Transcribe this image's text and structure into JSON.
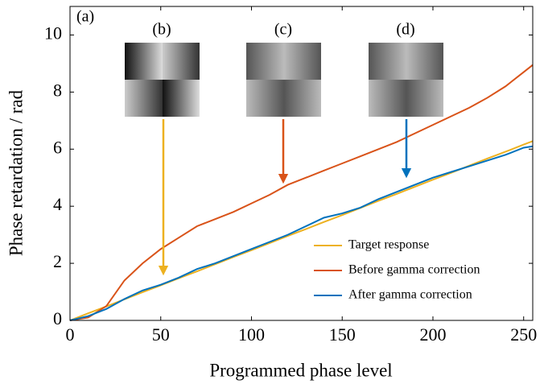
{
  "chart_data": {
    "type": "line",
    "x_label": "Programmed phase level",
    "y_label": "Phase retardation / rad",
    "annotations": [
      "(a)",
      "(b)",
      "(c)",
      "(d)"
    ],
    "x": [
      0,
      10,
      20,
      30,
      40,
      50,
      60,
      70,
      80,
      90,
      100,
      110,
      120,
      130,
      140,
      150,
      160,
      170,
      180,
      190,
      200,
      210,
      220,
      230,
      240,
      250,
      255
    ],
    "series": [
      {
        "name": "Target response",
        "color": "#EDB120",
        "values": [
          0,
          0.25,
          0.49,
          0.74,
          0.99,
          1.23,
          1.48,
          1.72,
          1.97,
          2.22,
          2.46,
          2.71,
          2.96,
          3.2,
          3.45,
          3.69,
          3.94,
          4.19,
          4.43,
          4.68,
          4.93,
          5.17,
          5.42,
          5.67,
          5.91,
          6.16,
          6.28
        ]
      },
      {
        "name": "Before gamma correction",
        "color": "#D95319",
        "values": [
          0,
          0.1,
          0.5,
          1.4,
          2.0,
          2.5,
          2.9,
          3.3,
          3.55,
          3.8,
          4.1,
          4.4,
          4.75,
          5.0,
          5.25,
          5.5,
          5.75,
          6.0,
          6.25,
          6.55,
          6.85,
          7.15,
          7.45,
          7.8,
          8.2,
          8.7,
          8.95
        ]
      },
      {
        "name": "After gamma correction",
        "color": "#0072BD",
        "values": [
          0,
          0.15,
          0.4,
          0.75,
          1.05,
          1.25,
          1.5,
          1.8,
          2.0,
          2.25,
          2.5,
          2.75,
          3.0,
          3.3,
          3.6,
          3.75,
          3.95,
          4.25,
          4.5,
          4.75,
          5.0,
          5.2,
          5.4,
          5.6,
          5.8,
          6.05,
          6.1
        ]
      }
    ],
    "xlim": [
      0,
      255
    ],
    "xticks": [
      0,
      50,
      100,
      150,
      200,
      250
    ],
    "ylim": [
      0,
      11
    ],
    "yticks": [
      0,
      2,
      4,
      6,
      8,
      10
    ],
    "legend": "lower right"
  }
}
